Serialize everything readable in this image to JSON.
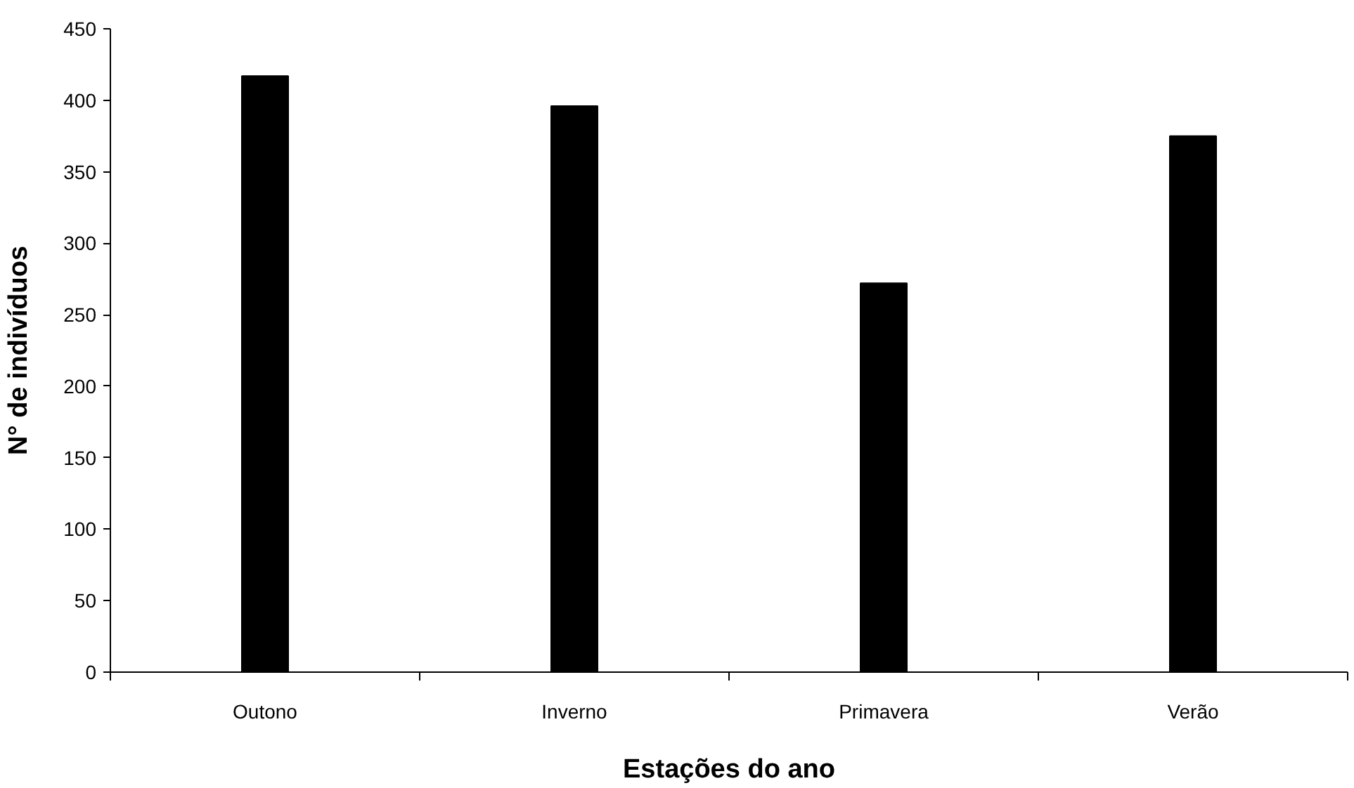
{
  "chart_data": {
    "type": "bar",
    "xlabel": "Estações do ano",
    "ylabel": "N° de indivíduos",
    "categories": [
      "Outono",
      "Inverno",
      "Primavera",
      "Verão"
    ],
    "values": [
      417,
      396,
      272,
      375
    ],
    "color": "#000000",
    "ylim": [
      0,
      450
    ],
    "yticks": [
      0,
      50,
      100,
      150,
      200,
      250,
      300,
      350,
      400,
      450
    ],
    "grid": false
  }
}
